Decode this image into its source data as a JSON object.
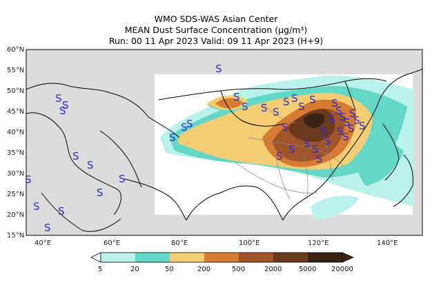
{
  "header": {
    "center": "WMO SDS-WAS Asian Center",
    "product": "MEAN Dust Surface Concentration (μg/m³)",
    "run_valid": "Run: 00 11 Apr 2023     Valid: 09 11 Apr 2023 (H+9)"
  },
  "map": {
    "lon_range": [
      35,
      150
    ],
    "lat_range": [
      15,
      60
    ],
    "lat_ticks": [
      "60°N",
      "55°N",
      "50°N",
      "45°N",
      "40°N",
      "35°N",
      "30°N",
      "25°N",
      "20°N",
      "15°N"
    ],
    "lon_ticks": [
      "40°E",
      "60°E",
      "80°E",
      "100°E",
      "120°E",
      "140°E"
    ],
    "station_symbol": "S",
    "colors": {
      "no_data": "#dcdcdc",
      "land_line": "#000000",
      "province_line": "#888888"
    }
  },
  "colorbar": {
    "bounds": [
      "5",
      "20",
      "50",
      "200",
      "500",
      "2000",
      "5000",
      "20000"
    ],
    "colors": [
      "#b8f2ea",
      "#62d7c8",
      "#f2cd73",
      "#d77b33",
      "#a0542a",
      "#6b3a1e",
      "#3a2313"
    ]
  }
}
